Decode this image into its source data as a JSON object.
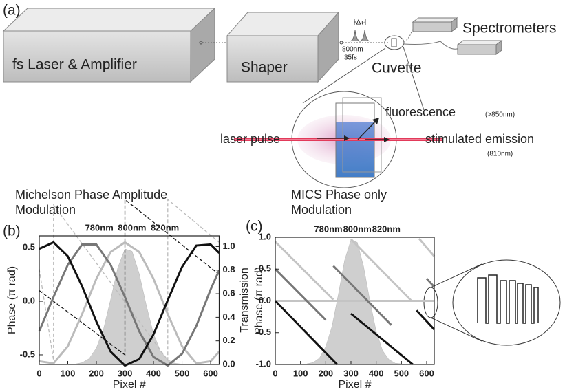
{
  "diagram": {
    "panel": "(a)",
    "laser": "fs Laser & Amplifier",
    "shaper": "Shaper",
    "delay": "Δτ",
    "wavelength": "800nm",
    "duration": "35fs",
    "spectrometers": "Spectrometers",
    "cuvette": "Cuvette",
    "fluorescence": "fluorescence",
    "fluorescence_range": "(>850nm)",
    "laser_pulse": "laser pulse",
    "stimulated": "stimulated emission",
    "stimulated_range": "(810nm)"
  },
  "chart_data": [
    {
      "type": "line",
      "panel": "(b)",
      "title_lines": [
        "Michelson Phase Amplitude",
        "Modulation"
      ],
      "xlabel": "Pixel #",
      "ylabel": "Phase (π rad)",
      "y2label": "Transmission",
      "xlim": [
        0,
        630
      ],
      "xticks": [
        0,
        100,
        200,
        300,
        400,
        500,
        600
      ],
      "ylim": [
        -0.59,
        0.61
      ],
      "yticks": [
        -0.5,
        {
          "value": 0,
          "label": "0.0"
        },
        0.5
      ],
      "y2lim": [
        0,
        1.09
      ],
      "y2ticks": [
        {
          "value": 0,
          "label": "0.0"
        },
        0.2,
        0.4,
        0.6,
        0.8,
        {
          "value": 1,
          "label": "1.0"
        }
      ],
      "x2ticks": [
        {
          "value": 210,
          "label": "780nm"
        },
        {
          "value": 325,
          "label": "800nm"
        },
        {
          "value": 440,
          "label": "820nm"
        }
      ],
      "series": [
        {
          "style": "area",
          "axis": "y2",
          "color": "#cfcfcf",
          "x": [
            125,
            150,
            175,
            200,
            225,
            250,
            275,
            300,
            325,
            350,
            375,
            400,
            425,
            450,
            475,
            500
          ],
          "values": [
            0.003,
            0.015,
            0.05,
            0.14,
            0.3,
            0.55,
            0.82,
            0.98,
            0.96,
            0.77,
            0.5,
            0.26,
            0.11,
            0.04,
            0.01,
            0.003
          ]
        },
        {
          "style": "dashed",
          "color": "#bbbbbb",
          "x": [
            0,
            50,
            50,
            450,
            450,
            630
          ],
          "values": [
            0.3,
            -0.55,
            0.9,
            -0.55,
            0.95,
            0.55
          ]
        },
        {
          "style": "dashed",
          "color": "#111111",
          "x": [
            0,
            300,
            300,
            630
          ],
          "values": [
            0.1,
            -0.5,
            0.95,
            0.25
          ]
        },
        {
          "style": "solid",
          "color": "#bbbbbb",
          "x": [
            0,
            50,
            100,
            150,
            200,
            250,
            300,
            350,
            400,
            450,
            500,
            550,
            600,
            630
          ],
          "values": [
            -0.56,
            -0.58,
            -0.42,
            -0.12,
            0.21,
            0.46,
            0.55,
            0.46,
            0.21,
            -0.12,
            -0.42,
            -0.58,
            -0.56,
            -0.47
          ]
        },
        {
          "style": "solid",
          "color": "#777777",
          "x": [
            0,
            50,
            100,
            150,
            200,
            250,
            300,
            350,
            400,
            450,
            500,
            550,
            600,
            630
          ],
          "values": [
            -0.28,
            0.04,
            0.34,
            0.53,
            0.53,
            0.34,
            0.04,
            -0.28,
            -0.52,
            -0.6,
            -0.49,
            -0.23,
            0.11,
            0.29
          ]
        },
        {
          "style": "solid",
          "color": "#111111",
          "x": [
            0,
            50,
            100,
            150,
            200,
            250,
            300,
            350,
            400,
            450,
            500,
            550,
            600,
            630
          ],
          "values": [
            0.49,
            0.55,
            0.42,
            0.14,
            -0.19,
            -0.47,
            -0.6,
            -0.54,
            -0.31,
            0.01,
            0.32,
            0.52,
            0.53,
            0.45
          ]
        }
      ]
    },
    {
      "type": "line",
      "panel": "(c)",
      "title_lines": [
        "MICS Phase only",
        "Modulation"
      ],
      "xlabel": "Pixel #",
      "ylabel": "Phase (π rad)",
      "xlim": [
        0,
        630
      ],
      "xticks": [
        0,
        100,
        200,
        300,
        400,
        500,
        600
      ],
      "ylim": [
        -1,
        1
      ],
      "yticks": [
        {
          "value": -1,
          "label": "-1.0"
        },
        -0.5,
        {
          "value": 0,
          "label": "0.0"
        },
        0.5,
        {
          "value": 1,
          "label": "1.0"
        }
      ],
      "x2ticks": [
        {
          "value": 210,
          "label": "780nm"
        },
        {
          "value": 325,
          "label": "800nm"
        },
        {
          "value": 440,
          "label": "820nm"
        }
      ],
      "series": [
        {
          "style": "area",
          "color": "#cfcfcf",
          "x": [
            125,
            150,
            175,
            200,
            225,
            250,
            275,
            300,
            325,
            350,
            375,
            400,
            425,
            450,
            475,
            500
          ],
          "values": [
            -0.99,
            -0.97,
            -0.9,
            -0.72,
            -0.4,
            0.1,
            0.64,
            0.96,
            0.92,
            0.54,
            0,
            -0.48,
            -0.78,
            -0.92,
            -0.98,
            -0.99
          ]
        },
        {
          "style": "solid",
          "color": "#c4c4c4",
          "x": [
            0,
            630
          ],
          "values": [
            0,
            0
          ]
        },
        {
          "style": "solid",
          "color": "#c4c4c4",
          "x": [
            0,
            230,
            265,
            300,
            540,
            555,
            570,
            630
          ],
          "values": [
            0.93,
            0.02,
            null,
            0.97,
            0,
            null,
            0.98,
            0.7
          ]
        },
        {
          "style": "solid",
          "color": "#777777",
          "x": [
            0,
            200,
            215,
            230,
            460,
            480,
            600,
            630
          ],
          "values": [
            0.5,
            -0.3,
            null,
            0.55,
            -0.38,
            null,
            0.35,
            0.22
          ]
        },
        {
          "style": "solid",
          "color": "#111111",
          "x": [
            0,
            245,
            270,
            300,
            545,
            550,
            560,
            630
          ],
          "values": [
            0,
            -1,
            null,
            -0.2,
            -1,
            null,
            -0.15,
            -0.45
          ]
        }
      ]
    }
  ]
}
